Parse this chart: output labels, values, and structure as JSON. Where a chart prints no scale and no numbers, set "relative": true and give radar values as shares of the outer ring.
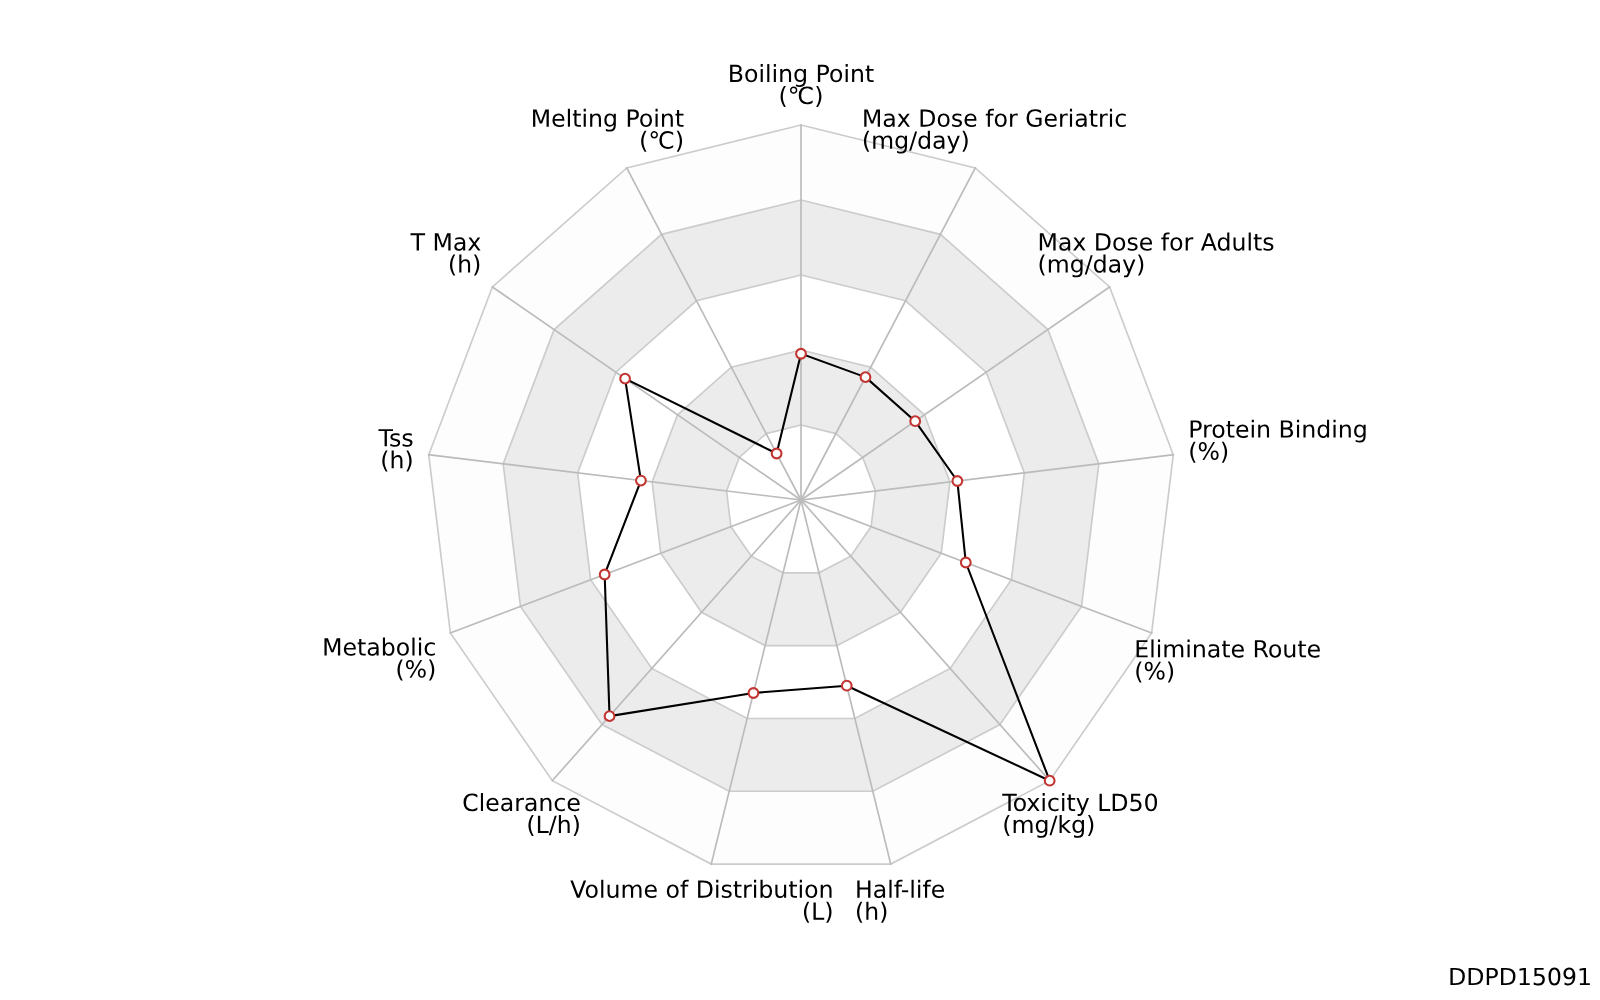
{
  "chart_data": {
    "type": "radar",
    "relative": true,
    "grid": true,
    "marker": "circle",
    "line_style": "solid",
    "categories": [
      "Boiling Point\n(℃)",
      "Max Dose for Geriatric\n(mg/day)",
      "Max Dose for Adults\n(mg/day)",
      "Protein Binding\n(%)",
      "Eliminate Route\n(%)",
      "Toxicity LD50\n(mg/kg)",
      "Half-life\n(h)",
      "Volume of Distribution\n(L)",
      "Clearance\n(L/h)",
      "Metabolic\n(%)",
      "Tss\n(h)",
      "T Max\n(h)",
      "Melting Point\n(℃)"
    ],
    "series": [
      {
        "color": "#000000",
        "values": [
          0.39,
          0.37,
          0.37,
          0.42,
          0.47,
          1.0,
          0.51,
          0.53,
          0.77,
          0.56,
          0.43,
          0.57,
          0.14
        ]
      }
    ],
    "annotations": [
      "DDPD15091"
    ]
  }
}
